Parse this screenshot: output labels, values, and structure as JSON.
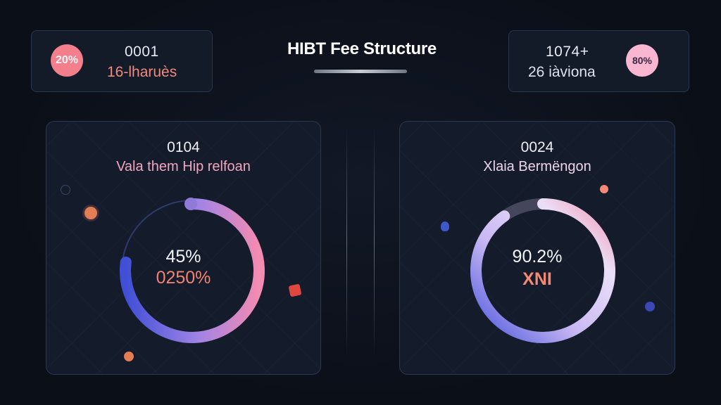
{
  "header": {
    "title": "HIBT Fee Structure"
  },
  "stats": {
    "left": {
      "badge": "20%",
      "number": "0001",
      "label": "16-lharuès"
    },
    "right": {
      "badge": "80%",
      "number": "1074+",
      "label": "26 iàviona"
    }
  },
  "panels": {
    "left": {
      "number": "0104",
      "label": "Vala them Hip relfoan",
      "ring_value": "45%",
      "ring_sub": "0250%",
      "progress": 0.45
    },
    "right": {
      "number": "0024",
      "label": "Xlaia Bermëngon",
      "ring_value": "90.2%",
      "ring_sub": "XNI",
      "progress": 0.902
    }
  },
  "colors": {
    "accent_blue": "#4052d8",
    "accent_purple": "#a486e8",
    "accent_pink": "#f58fb0",
    "accent_coral": "#f27f8b",
    "badge_pink": "#f8b6d0"
  },
  "icons": {
    "left_decor": [
      "orbit-icon",
      "card-icon"
    ],
    "right_decor": [
      "pin-icon",
      "dot-icon"
    ]
  }
}
